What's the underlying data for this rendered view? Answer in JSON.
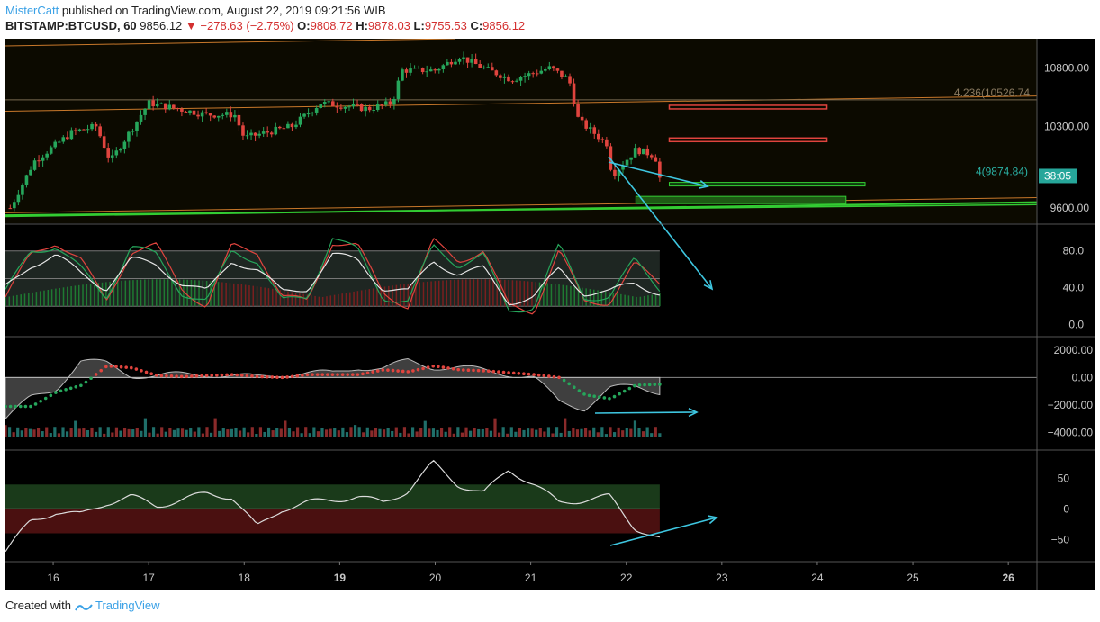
{
  "header": {
    "user": "MisterCatt",
    "published_text": "published on TradingView.com, August 22, 2019 09:21:56 WIB",
    "symbol": "BITSTAMP:BTCUSD, 60",
    "last": "9856.12",
    "change": "−278.63 (−2.75%)",
    "o_label": "O:",
    "o": "9808.72",
    "h_label": "H:",
    "h": "9878.03",
    "l_label": "L:",
    "l": "9755.53",
    "c_label": "C:",
    "c": "9856.12"
  },
  "footer": {
    "created_with": "Created with",
    "brand": "TradingView"
  },
  "colors": {
    "background": "#000000",
    "bull": "#26a65b",
    "bear": "#e0443e",
    "annotation_arrow": "#3ec6e0",
    "support": "#33cc33",
    "trendline": "#c8782a",
    "price_label_bg": "#26a69a"
  },
  "chart_data": [
    {
      "type": "candlestick",
      "pane": "price",
      "x_ticks": [
        "16",
        "17",
        "18",
        "19",
        "20",
        "21",
        "22",
        "23",
        "24",
        "25",
        "26"
      ],
      "bold_ticks": [
        "19",
        "26"
      ],
      "x_range": [
        15.5,
        26.3
      ],
      "y_range": [
        9470,
        11050
      ],
      "y_ticks": [
        "10800.00",
        "10300.00",
        "9600.00"
      ],
      "y_tick_values": [
        10800,
        10300,
        9600
      ],
      "annotations": {
        "fib_4236": "4.236(10526.74",
        "fib_4": "4(9874.84)",
        "countdown": "38:05",
        "fib_4236_value": 10526.74,
        "fib_4_value": 9874.84
      },
      "key_prices": [
        {
          "day": 15.55,
          "price": 9600
        },
        {
          "day": 15.8,
          "price": 10000
        },
        {
          "day": 16.2,
          "price": 10250
        },
        {
          "day": 16.45,
          "price": 10300
        },
        {
          "day": 16.6,
          "price": 10000
        },
        {
          "day": 17.0,
          "price": 10500
        },
        {
          "day": 17.3,
          "price": 10450
        },
        {
          "day": 17.6,
          "price": 10400
        },
        {
          "day": 17.9,
          "price": 10400
        },
        {
          "day": 18.0,
          "price": 10200
        },
        {
          "day": 18.5,
          "price": 10300
        },
        {
          "day": 18.8,
          "price": 10500
        },
        {
          "day": 19.3,
          "price": 10450
        },
        {
          "day": 19.55,
          "price": 10500
        },
        {
          "day": 19.65,
          "price": 10780
        },
        {
          "day": 20.0,
          "price": 10780
        },
        {
          "day": 20.25,
          "price": 10900
        },
        {
          "day": 20.5,
          "price": 10800
        },
        {
          "day": 20.8,
          "price": 10700
        },
        {
          "day": 21.2,
          "price": 10800
        },
        {
          "day": 21.4,
          "price": 10700
        },
        {
          "day": 21.5,
          "price": 10350
        },
        {
          "day": 21.8,
          "price": 10150
        },
        {
          "day": 21.85,
          "price": 9880
        },
        {
          "day": 22.1,
          "price": 10100
        },
        {
          "day": 22.3,
          "price": 10050
        },
        {
          "day": 22.35,
          "price": 9856
        }
      ]
    },
    {
      "type": "line",
      "pane": "stoch_rsi",
      "y_range": [
        -12,
        108
      ],
      "y_ticks": [
        "80.0",
        "40.0",
        "0.0"
      ],
      "y_tick_values": [
        80,
        40,
        0
      ],
      "band": [
        20,
        80
      ],
      "series": [
        {
          "color": "#e0443e",
          "values": [
            30,
            75,
            90,
            70,
            25,
            80,
            85,
            40,
            20,
            85,
            80,
            30,
            25,
            90,
            85,
            35,
            20,
            90,
            70,
            80,
            20,
            15,
            80,
            25,
            25,
            65,
            45
          ]
        },
        {
          "color": "#26a65b",
          "values": [
            35,
            80,
            85,
            60,
            30,
            85,
            75,
            35,
            25,
            80,
            70,
            25,
            30,
            95,
            80,
            30,
            25,
            85,
            65,
            75,
            15,
            20,
            85,
            30,
            30,
            70,
            40
          ]
        },
        {
          "color": "#e6e6e6",
          "values": [
            40,
            65,
            75,
            55,
            40,
            70,
            65,
            45,
            35,
            70,
            60,
            35,
            40,
            75,
            70,
            40,
            35,
            70,
            55,
            60,
            25,
            30,
            60,
            35,
            35,
            45,
            35
          ]
        }
      ]
    },
    {
      "type": "area",
      "pane": "momentum",
      "y_range": [
        -5200,
        2900
      ],
      "y_ticks": [
        "2000.00",
        "0.00",
        "−2000.00",
        "−4000.00"
      ],
      "y_tick_values": [
        2000,
        0,
        -2000,
        -4000
      ],
      "values": [
        -3000,
        -1500,
        -800,
        1200,
        1000,
        200,
        100,
        200,
        300,
        100,
        0,
        300,
        300,
        300,
        800,
        600,
        1200,
        800,
        700,
        500,
        300,
        0,
        -1800,
        -2200,
        -800,
        -700,
        -1000
      ]
    },
    {
      "type": "line",
      "pane": "oscillator",
      "y_range": [
        -85,
        95
      ],
      "y_ticks": [
        "50",
        "0",
        "−50"
      ],
      "y_tick_values": [
        50,
        0,
        -50
      ],
      "bands": [
        {
          "from": 0,
          "to": 40,
          "color": "#1a3a1a"
        },
        {
          "from": -40,
          "to": 0,
          "color": "#4a1010"
        }
      ],
      "values": [
        -70,
        -20,
        -5,
        -10,
        10,
        20,
        5,
        15,
        25,
        20,
        -30,
        0,
        10,
        15,
        20,
        10,
        30,
        75,
        40,
        25,
        65,
        40,
        10,
        15,
        20,
        -30,
        -50
      ]
    }
  ]
}
